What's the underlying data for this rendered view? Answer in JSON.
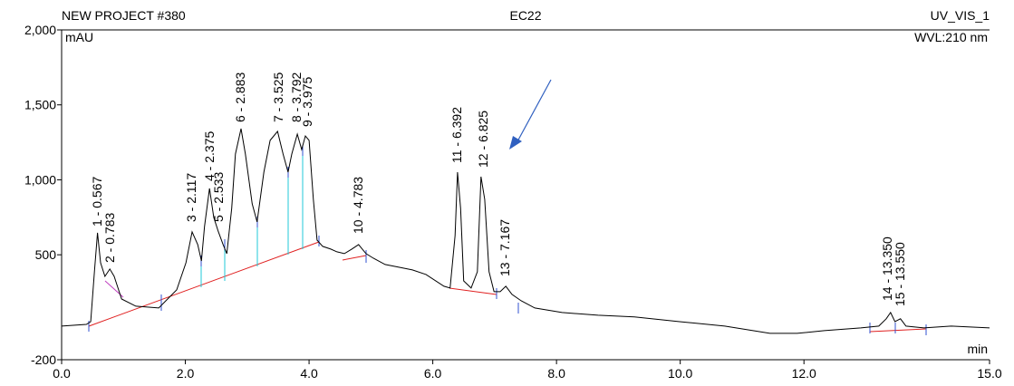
{
  "chart_data": {
    "type": "line",
    "title": "EC22",
    "project": "NEW PROJECT #380",
    "channel": "UV_VIS_1",
    "wavelength": "WVL:210 nm",
    "y_label": "mAU",
    "x_label": "min",
    "color": "#000000",
    "xlim": [
      0,
      15
    ],
    "ylim": [
      -200,
      2000
    ],
    "xticks": [
      {
        "value": 0,
        "label": "0.0"
      },
      {
        "value": 2,
        "label": "2.0"
      },
      {
        "value": 4,
        "label": "4.0"
      },
      {
        "value": 6,
        "label": "6.0"
      },
      {
        "value": 8,
        "label": "8.0"
      },
      {
        "value": 10,
        "label": "10.0"
      },
      {
        "value": 12,
        "label": "12.0"
      },
      {
        "value": 15,
        "label": "15.0"
      }
    ],
    "yticks": [
      -200,
      500,
      {
        "value": 1000,
        "label": "1,000"
      },
      {
        "value": 1500,
        "label": "1,500"
      },
      {
        "value": 2000,
        "label": "2,000"
      }
    ],
    "x": [
      0,
      0.4,
      0.47,
      0.53,
      0.58,
      0.63,
      0.7,
      0.78,
      0.85,
      0.97,
      1.2,
      1.57,
      1.86,
      2.01,
      2.11,
      2.2,
      2.26,
      2.31,
      2.39,
      2.46,
      2.53,
      2.61,
      2.67,
      2.75,
      2.81,
      2.9,
      2.97,
      3.08,
      3.16,
      3.27,
      3.37,
      3.49,
      3.58,
      3.66,
      3.72,
      3.81,
      3.88,
      3.94,
      4.0,
      4.07,
      4.13,
      4.22,
      4.35,
      4.45,
      4.57,
      4.69,
      4.8,
      4.92,
      5.04,
      5.23,
      5.45,
      5.67,
      5.89,
      6.18,
      6.28,
      6.36,
      6.4,
      6.45,
      6.5,
      6.62,
      6.72,
      6.78,
      6.84,
      6.91,
      6.99,
      7.09,
      7.18,
      7.28,
      7.43,
      7.65,
      8.09,
      8.67,
      9.26,
      9.99,
      10.72,
      11.45,
      11.89,
      12.33,
      12.92,
      13.21,
      13.33,
      13.4,
      13.47,
      13.56,
      13.65,
      13.94,
      14.38,
      15.0
    ],
    "values": [
      24,
      36,
      54,
      387,
      647,
      447,
      356,
      405,
      356,
      205,
      157,
      145,
      266,
      447,
      653,
      568,
      459,
      689,
      943,
      749,
      659,
      568,
      508,
      810,
      1172,
      1341,
      1172,
      840,
      719,
      1051,
      1263,
      1323,
      1172,
      1051,
      1172,
      1305,
      1202,
      1293,
      1263,
      870,
      598,
      556,
      538,
      520,
      508,
      538,
      568,
      508,
      477,
      435,
      417,
      399,
      369,
      290,
      278,
      628,
      1051,
      810,
      326,
      278,
      387,
      1021,
      870,
      387,
      254,
      254,
      290,
      236,
      193,
      145,
      115,
      97,
      85,
      54,
      24,
      -24,
      -24,
      -6,
      12,
      24,
      73,
      115,
      54,
      73,
      24,
      12,
      24,
      12
    ],
    "peaks": [
      "1 - 0.567",
      "2 - 0.783",
      "3 - 2.117",
      "4 - 2.375",
      "5 - 2.533",
      "6 - 2.883",
      "7 - 3.525",
      "8 - 3.792",
      "9 - 3.975",
      "10 - 4.783",
      "11 - 6.392",
      "12 - 6.825",
      "13 - 7.167",
      "14 - 13.350",
      "15 - 13.550"
    ]
  }
}
